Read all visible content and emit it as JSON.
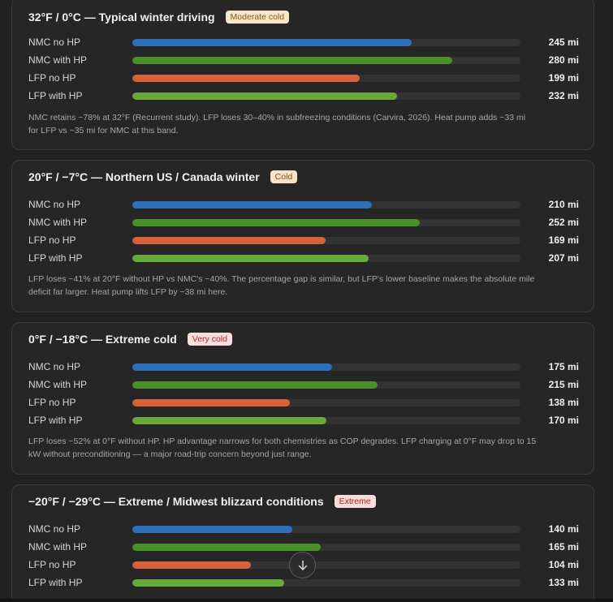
{
  "colors": {
    "nmc_no_hp": "#2d6fb8",
    "nmc_with_hp": "#4b8f2a",
    "lfp_no_hp": "#d9613a",
    "lfp_with_hp": "#6aa83a",
    "badge_moderate_bg": "#f5e6cc",
    "badge_moderate_fg": "#8a5a12",
    "badge_cold_bg": "#f6e3c8",
    "badge_cold_fg": "#8a4e10",
    "badge_verycold_bg": "#f8dede",
    "badge_verycold_fg": "#b02a2a",
    "badge_extreme_bg": "#f8dcdc",
    "badge_extreme_fg": "#b51f1f"
  },
  "cards": [
    {
      "title": "32°F / 0°C — Typical winter driving",
      "badge": "Moderate cold",
      "rows": [
        {
          "label": "NMC no HP",
          "value": "245 mi",
          "range": 245
        },
        {
          "label": "NMC with HP",
          "value": "280 mi",
          "range": 280
        },
        {
          "label": "LFP no HP",
          "value": "199 mi",
          "range": 199
        },
        {
          "label": "LFP with HP",
          "value": "232 mi",
          "range": 232
        }
      ],
      "note_line1": "NMC retains ~78% at 32°F (Recurrent study). LFP loses 30–40% in subfreezing conditions (Carvira, 2026). Heat pump adds ~33 mi",
      "note_line2": "for LFP vs ~35 mi for NMC at this band."
    },
    {
      "title": "20°F / −7°C — Northern US / Canada winter",
      "badge": "Cold",
      "rows": [
        {
          "label": "NMC no HP",
          "value": "210 mi",
          "range": 210
        },
        {
          "label": "NMC with HP",
          "value": "252 mi",
          "range": 252
        },
        {
          "label": "LFP no HP",
          "value": "169 mi",
          "range": 169
        },
        {
          "label": "LFP with HP",
          "value": "207 mi",
          "range": 207
        }
      ],
      "note_line1": "LFP loses ~41% at 20°F without HP vs NMC's ~40%. The percentage gap is similar, but LFP's lower baseline makes the absolute mile",
      "note_line2": "deficit far larger. Heat pump lifts LFP by ~38 mi here."
    },
    {
      "title": "0°F / −18°C — Extreme cold",
      "badge": "Very cold",
      "rows": [
        {
          "label": "NMC no HP",
          "value": "175 mi",
          "range": 175
        },
        {
          "label": "NMC with HP",
          "value": "215 mi",
          "range": 215
        },
        {
          "label": "LFP no HP",
          "value": "138 mi",
          "range": 138
        },
        {
          "label": "LFP with HP",
          "value": "170 mi",
          "range": 170
        }
      ],
      "note_line1": "LFP loses ~52% at 0°F without HP. HP advantage narrows for both chemistries as COP degrades. LFP charging at 0°F may drop to 15",
      "note_line2": "kW without preconditioning — a major road-trip concern beyond just range."
    },
    {
      "title": "−20°F / −29°C — Extreme / Midwest blizzard conditions",
      "badge": "Extreme",
      "rows": [
        {
          "label": "NMC no HP",
          "value": "140 mi",
          "range": 140
        },
        {
          "label": "NMC with HP",
          "value": "165 mi",
          "range": 165
        },
        {
          "label": "LFP no HP",
          "value": "104 mi",
          "range": 104
        },
        {
          "label": "LFP with HP",
          "value": "133 mi",
          "range": 133
        }
      ],
      "note_line1": "",
      "note_line2": ""
    }
  ],
  "bar_scale_max_mi": 340,
  "scroll_button_icon": "arrow-down-icon"
}
